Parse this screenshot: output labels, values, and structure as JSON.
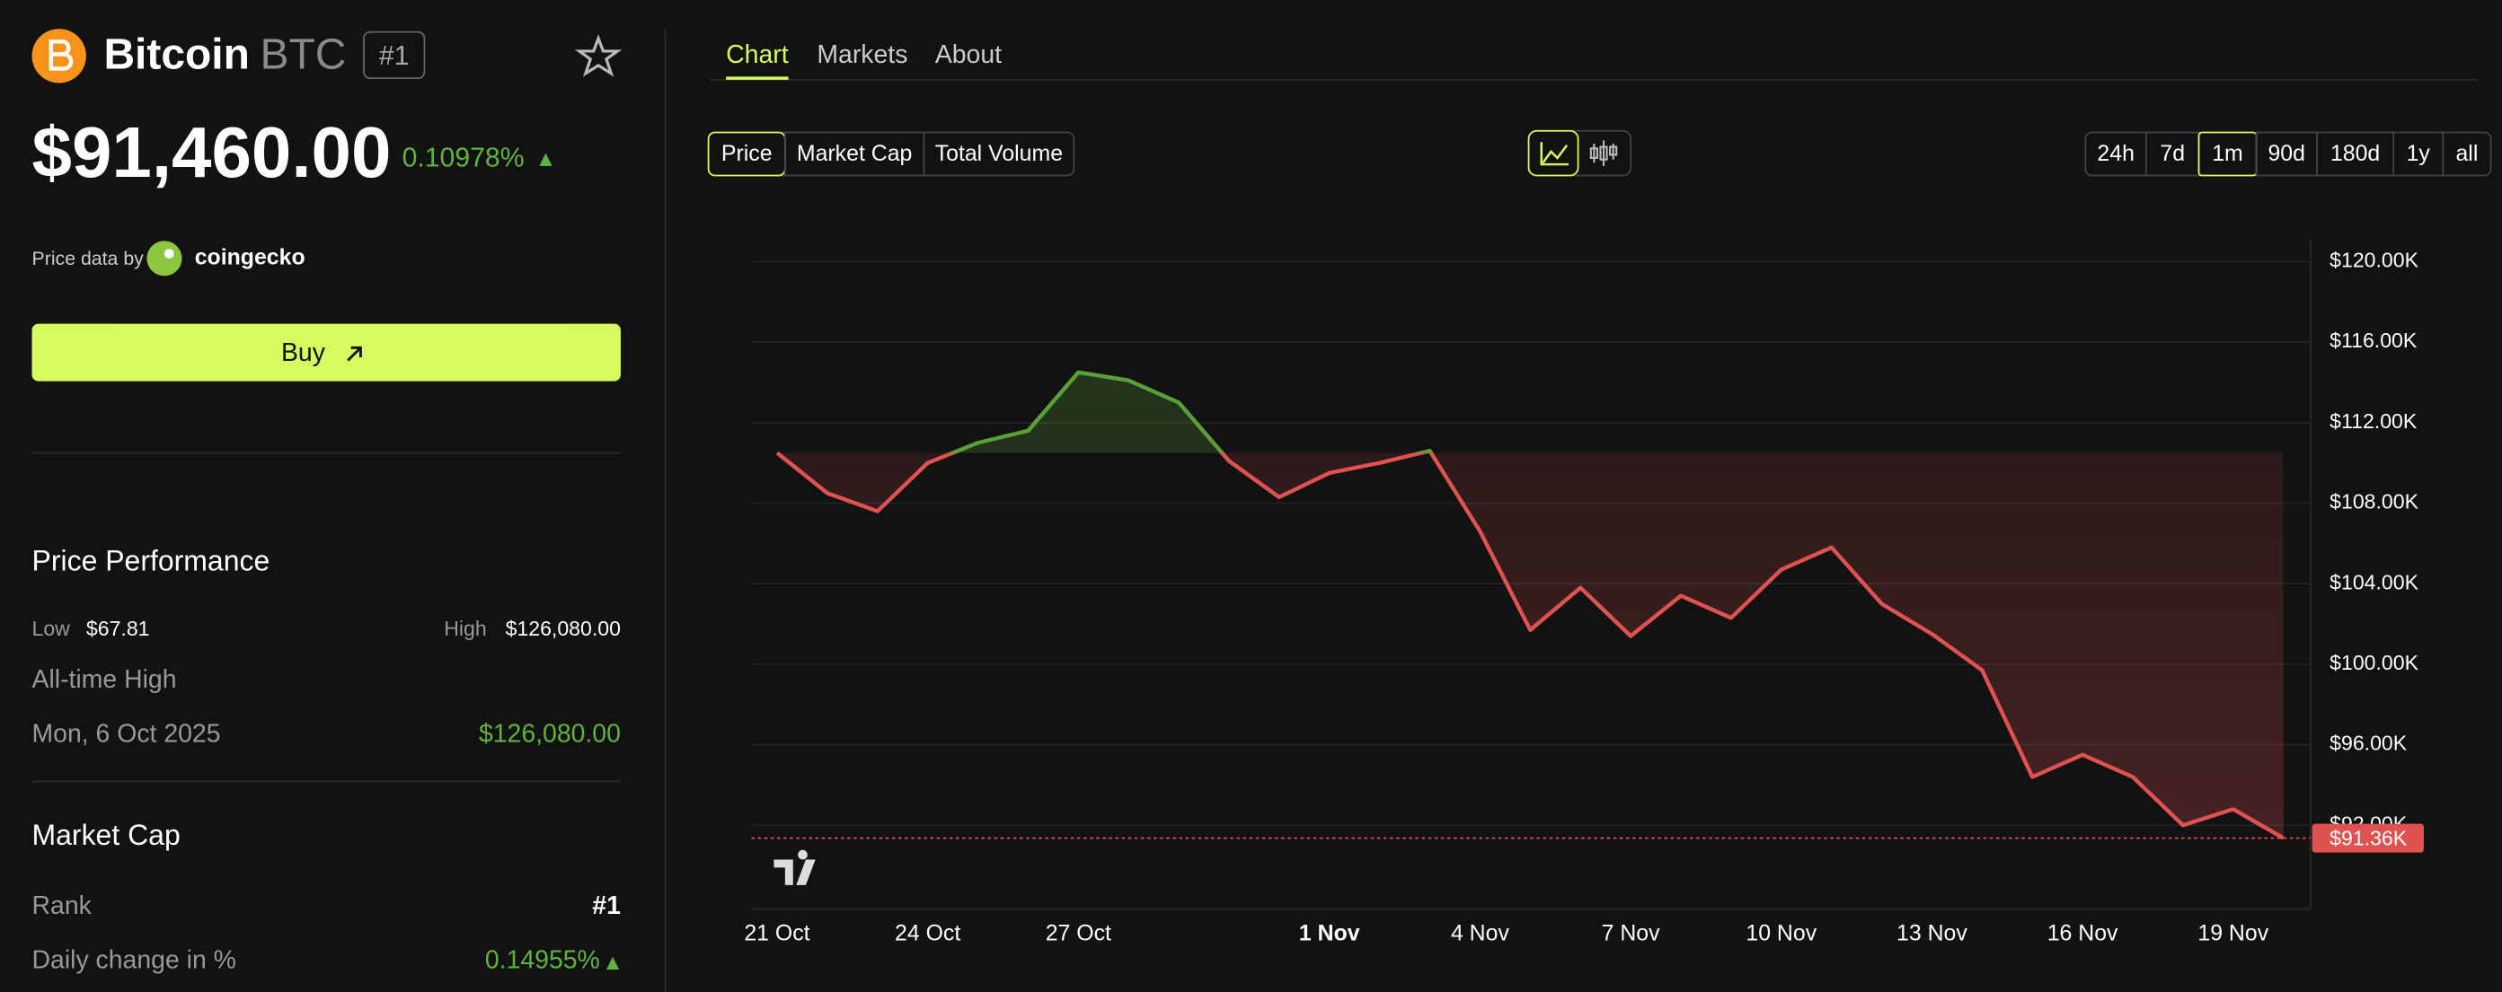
{
  "header": {
    "name": "Bitcoin",
    "symbol": "BTC",
    "rank": "#1",
    "price": "$91,460.00",
    "change": "0.10978%",
    "price_data_by": "Price data by",
    "provider": "coingecko",
    "buy": "Buy"
  },
  "performance": {
    "title": "Price Performance",
    "low_label": "Low",
    "low": "$67.81",
    "high_label": "High",
    "high": "$126,080.00",
    "ath_label": "All-time High",
    "ath_date": "Mon, 6 Oct 2025",
    "ath_value": "$126,080.00"
  },
  "market_cap": {
    "title": "Market Cap",
    "rank_label": "Rank",
    "rank": "#1",
    "daily_label": "Daily change in %",
    "daily": "0.14955%"
  },
  "tabs": [
    "Chart",
    "Markets",
    "About"
  ],
  "metrics": [
    "Price",
    "Market Cap",
    "Total Volume"
  ],
  "ranges": [
    "24h",
    "7d",
    "1m",
    "90d",
    "180d",
    "1y",
    "all"
  ],
  "chart_data": {
    "type": "line",
    "categories": [
      "21 Oct",
      null,
      null,
      "24 Oct",
      null,
      null,
      "27 Oct",
      null,
      null,
      null,
      null,
      "1 Nov",
      null,
      null,
      "4 Nov",
      null,
      null,
      "7 Nov",
      null,
      null,
      "10 Nov",
      null,
      null,
      "13 Nov",
      null,
      null,
      "16 Nov",
      null,
      null,
      "19 Nov",
      null
    ],
    "values": [
      110500,
      108500,
      107600,
      110000,
      111000,
      111600,
      114500,
      114100,
      113000,
      110100,
      108300,
      109500,
      110000,
      110600,
      106600,
      101700,
      103800,
      101400,
      103400,
      102300,
      104700,
      105800,
      103000,
      101500,
      99700,
      94400,
      95500,
      94400,
      92000,
      92800,
      91360
    ],
    "up_color": "#5aa03a",
    "down_color": "#e0524f",
    "ylim": [
      87840,
      121110
    ],
    "yticks": [
      {
        "value": 92000,
        "label": "$92.00K"
      },
      {
        "value": 96000,
        "label": "$96.00K"
      },
      {
        "value": 100000,
        "label": "$100.00K"
      },
      {
        "value": 104000,
        "label": "$104.00K"
      },
      {
        "value": 108000,
        "label": "$108.00K"
      },
      {
        "value": 112000,
        "label": "$112.00K"
      },
      {
        "value": 116000,
        "label": "$116.00K"
      },
      {
        "value": 120000,
        "label": "$120.00K"
      }
    ],
    "grid": true,
    "last_price": {
      "value": 91360,
      "label": "$91.36K"
    }
  }
}
